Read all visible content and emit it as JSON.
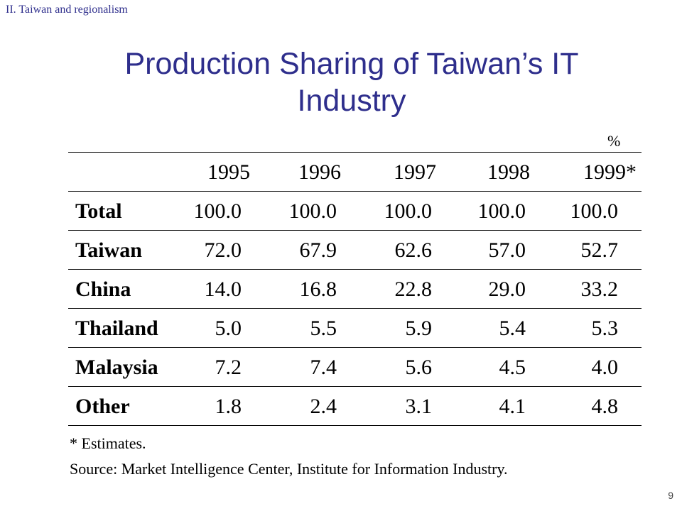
{
  "section_label": "II. Taiwan and regionalism",
  "title_line1": "Production Sharing of Taiwan’s IT",
  "title_line2": "Industry",
  "unit": "%",
  "table": {
    "headers": [
      "1995",
      "1996",
      "1997",
      "1998",
      "1999*"
    ],
    "rows": [
      {
        "label": "Total",
        "values": [
          "100.0",
          "100.0",
          "100.0",
          "100.0",
          "100.0"
        ]
      },
      {
        "label": "Taiwan",
        "values": [
          "72.0",
          "67.9",
          "62.6",
          "57.0",
          "52.7"
        ]
      },
      {
        "label": "China",
        "values": [
          "14.0",
          "16.8",
          "22.8",
          "29.0",
          "33.2"
        ]
      },
      {
        "label": "Thailand",
        "values": [
          "5.0",
          "5.5",
          "5.9",
          "5.4",
          "5.3"
        ]
      },
      {
        "label": "Malaysia",
        "values": [
          "7.2",
          "7.4",
          "5.6",
          "4.5",
          "4.0"
        ]
      },
      {
        "label": "Other",
        "values": [
          "1.8",
          "2.4",
          "3.1",
          "4.1",
          "4.8"
        ]
      }
    ]
  },
  "notes": {
    "estimates": "* Estimates.",
    "source": "Source: Market Intelligence Center, Institute for Information Industry."
  },
  "page_number": "9",
  "colors": {
    "title": "#2e2e8c",
    "text": "#000000",
    "background": "#ffffff"
  }
}
